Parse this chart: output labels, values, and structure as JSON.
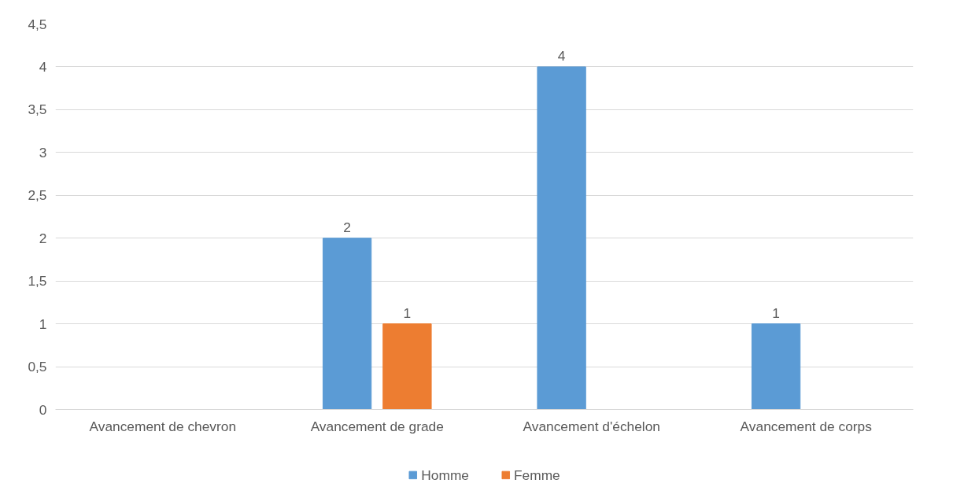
{
  "chart_data": {
    "type": "bar",
    "categories": [
      "Avancement de chevron",
      "Avancement de grade",
      "Avancement d'échelon",
      "Avancement de corps"
    ],
    "series": [
      {
        "name": "Homme",
        "color": "#5b9bd5",
        "values": [
          null,
          2,
          4,
          1
        ]
      },
      {
        "name": "Femme",
        "color": "#ed7d31",
        "values": [
          null,
          1,
          null,
          null
        ]
      }
    ],
    "ylim": [
      0,
      4.5
    ],
    "yticks": [
      0,
      {
        "value": 0.5,
        "label": "0,5"
      },
      1,
      {
        "value": 1.5,
        "label": "1,5"
      },
      2,
      {
        "value": 2.5,
        "label": "2,5"
      },
      3,
      {
        "value": 3.5,
        "label": "3,5"
      },
      4,
      {
        "value": 4.5,
        "label": "4,5"
      }
    ],
    "grid": "y",
    "legend": "bottom",
    "data_labels": true
  }
}
